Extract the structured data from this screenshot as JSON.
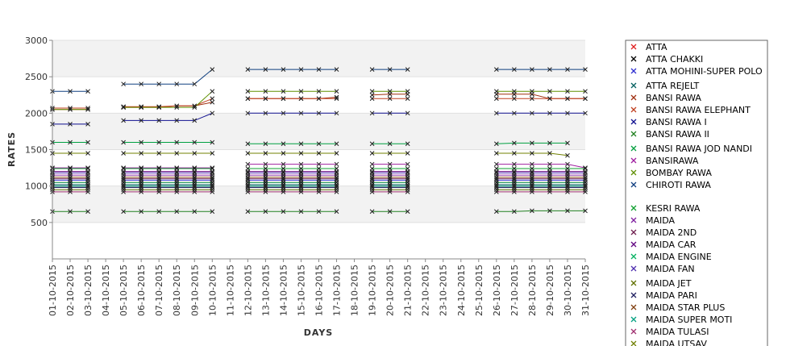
{
  "chart_data": {
    "type": "line",
    "title": "",
    "xlabel": "DAYS",
    "ylabel": "RATES",
    "ylim": [
      0,
      3000
    ],
    "yticks": [
      500,
      1000,
      1500,
      2000,
      2500,
      3000
    ],
    "grid": "horizontal alternating bands",
    "legend": "right",
    "categories": [
      "01-10-2015",
      "02-10-2015",
      "03-10-2015",
      "04-10-2015",
      "05-10-2015",
      "06-10-2015",
      "07-10-2015",
      "08-10-2015",
      "09-10-2015",
      "10-10-2015",
      "11-10-2015",
      "12-10-2015",
      "13-10-2015",
      "14-10-2015",
      "15-10-2015",
      "16-10-2015",
      "17-10-2015",
      "18-10-2015",
      "19-10-2015",
      "20-10-2015",
      "21-10-2015",
      "22-10-2015",
      "23-10-2015",
      "24-10-2015",
      "25-10-2015",
      "26-10-2015",
      "27-10-2015",
      "28-10-2015",
      "29-10-2015",
      "30-10-2015",
      "31-10-2015"
    ],
    "series": [
      {
        "name": "ATTA",
        "color": "#e02020",
        "values": [
          1050,
          1050,
          1050,
          null,
          1050,
          1050,
          1050,
          1050,
          1050,
          1050,
          null,
          1050,
          1050,
          1050,
          1050,
          1050,
          1050,
          null,
          1050,
          1050,
          1050,
          null,
          null,
          null,
          null,
          1050,
          1050,
          1050,
          1050,
          1050,
          1050
        ]
      },
      {
        "name": "ATTA CHAKKI",
        "color": "#000000",
        "values": [
          1000,
          1000,
          1000,
          null,
          1000,
          1000,
          1000,
          1000,
          1000,
          1000,
          null,
          1000,
          1000,
          1000,
          1000,
          1000,
          1000,
          null,
          1000,
          1000,
          1000,
          null,
          null,
          null,
          null,
          1000,
          1000,
          1000,
          1000,
          1000,
          1000
        ]
      },
      {
        "name": "ATTA MOHINI-SUPER POLO",
        "color": "#3030d0",
        "values": [
          1080,
          1080,
          1080,
          null,
          1080,
          1080,
          1080,
          1080,
          1080,
          1080,
          null,
          1080,
          1080,
          1080,
          1080,
          1080,
          1080,
          null,
          1080,
          1080,
          1080,
          null,
          null,
          null,
          null,
          1080,
          1080,
          1080,
          1080,
          1080,
          1080
        ]
      },
      {
        "name": "ATTA REJELT",
        "color": "#006060",
        "values": [
          1020,
          1020,
          1020,
          null,
          1020,
          1020,
          1020,
          1020,
          1020,
          1020,
          null,
          1020,
          1020,
          1020,
          1020,
          1020,
          1020,
          null,
          1020,
          1020,
          1020,
          null,
          null,
          null,
          null,
          1020,
          1020,
          1020,
          1020,
          1020,
          1020
        ]
      },
      {
        "name": "BANSI RAWA",
        "color": "#a03010",
        "values": [
          2050,
          2050,
          2050,
          null,
          2080,
          2080,
          2080,
          2100,
          2100,
          2150,
          null,
          2200,
          2200,
          2200,
          2200,
          2200,
          2220,
          null,
          2250,
          2260,
          2260,
          null,
          null,
          null,
          null,
          2260,
          2260,
          2260,
          2200,
          2200,
          2200
        ]
      },
      {
        "name": "BANSI RAWA ELEPHANT",
        "color": "#c04020",
        "values": [
          2070,
          2070,
          2070,
          null,
          2090,
          2090,
          2090,
          2100,
          2100,
          2200,
          null,
          2200,
          2200,
          2200,
          2200,
          2200,
          2200,
          null,
          2200,
          2200,
          2200,
          null,
          null,
          null,
          null,
          2200,
          2200,
          2200,
          2200,
          2200,
          2200
        ]
      },
      {
        "name": "BANSI RAWA I",
        "color": "#101090",
        "values": [
          1850,
          1850,
          1850,
          null,
          1900,
          1900,
          1900,
          1900,
          1900,
          2000,
          null,
          2000,
          2000,
          2000,
          2000,
          2000,
          2000,
          null,
          2000,
          2000,
          2000,
          null,
          null,
          null,
          null,
          2000,
          2000,
          2000,
          2000,
          2000,
          2000
        ]
      },
      {
        "name": "BANSI RAWA II",
        "color": "#208020",
        "values": [
          650,
          650,
          650,
          null,
          650,
          650,
          650,
          650,
          650,
          650,
          null,
          650,
          650,
          650,
          650,
          650,
          650,
          null,
          650,
          650,
          650,
          null,
          null,
          null,
          null,
          650,
          650,
          660,
          660,
          660,
          660
        ]
      },
      {
        "name": "BANSI RAWA JOD NANDI",
        "color": "#00a040",
        "values": [
          1600,
          1600,
          1600,
          null,
          1600,
          1600,
          1600,
          1600,
          1600,
          1600,
          null,
          1580,
          1580,
          1580,
          1580,
          1580,
          1580,
          null,
          1580,
          1580,
          1580,
          null,
          null,
          null,
          null,
          1580,
          1590,
          1590,
          1590,
          1590,
          null
        ]
      },
      {
        "name": "BANSIRAWA",
        "color": "#a020a0",
        "values": [
          1250,
          1250,
          1250,
          null,
          1250,
          1250,
          1250,
          1250,
          1250,
          1250,
          null,
          1300,
          1300,
          1300,
          1300,
          1300,
          1300,
          null,
          1300,
          1300,
          1300,
          null,
          null,
          null,
          null,
          1300,
          1300,
          1300,
          1300,
          1300,
          1250
        ]
      },
      {
        "name": "BOMBAY RAWA",
        "color": "#609000",
        "values": [
          2050,
          2050,
          2050,
          null,
          2080,
          2080,
          2080,
          2080,
          2080,
          2300,
          null,
          2300,
          2300,
          2300,
          2300,
          2300,
          2300,
          null,
          2300,
          2300,
          2300,
          null,
          null,
          null,
          null,
          2300,
          2300,
          2300,
          2300,
          2300,
          2300
        ]
      },
      {
        "name": "CHIROTI RAWA",
        "color": "#104080",
        "values": [
          2300,
          2300,
          2300,
          null,
          2400,
          2400,
          2400,
          2400,
          2400,
          2600,
          null,
          2600,
          2600,
          2600,
          2600,
          2600,
          2600,
          null,
          2600,
          2600,
          2600,
          null,
          null,
          null,
          null,
          2600,
          2600,
          2600,
          2600,
          2600,
          2600
        ]
      },
      {
        "name": "KESRI RAWA",
        "color": "#10a030",
        "values": [
          1240,
          1240,
          1240,
          null,
          1240,
          1240,
          1240,
          1240,
          1240,
          1240,
          null,
          1240,
          1240,
          1240,
          1240,
          1240,
          1240,
          null,
          1240,
          1240,
          1240,
          null,
          null,
          null,
          null,
          1240,
          1240,
          1240,
          1240,
          1240,
          1240
        ]
      },
      {
        "name": "MAIDA",
        "color": "#8020a0",
        "values": [
          1150,
          1150,
          1150,
          null,
          1150,
          1150,
          1150,
          1150,
          1150,
          1150,
          null,
          1150,
          1150,
          1150,
          1150,
          1150,
          1150,
          null,
          1150,
          1150,
          1150,
          null,
          null,
          null,
          null,
          1150,
          1150,
          1150,
          1150,
          1150,
          1150
        ]
      },
      {
        "name": "MAIDA 2ND",
        "color": "#702050",
        "values": [
          1100,
          1100,
          1100,
          null,
          1100,
          1100,
          1100,
          1100,
          1100,
          1100,
          null,
          1100,
          1100,
          1100,
          1100,
          1100,
          1100,
          null,
          1100,
          1100,
          1100,
          null,
          null,
          null,
          null,
          1100,
          1100,
          1100,
          1100,
          1100,
          1100
        ]
      },
      {
        "name": "MAIDA CAR",
        "color": "#600080",
        "values": [
          1200,
          1200,
          1200,
          null,
          1200,
          1200,
          1200,
          1200,
          1200,
          1200,
          null,
          1200,
          1200,
          1200,
          1200,
          1200,
          1200,
          null,
          1200,
          1200,
          1200,
          null,
          null,
          null,
          null,
          1200,
          1200,
          1200,
          1200,
          1200,
          1200
        ]
      },
      {
        "name": "MAIDA ENGINE",
        "color": "#00b060",
        "values": [
          1050,
          1050,
          1050,
          null,
          1050,
          1050,
          1050,
          1050,
          1050,
          1050,
          null,
          1050,
          1050,
          1050,
          1050,
          1050,
          1050,
          null,
          1050,
          1050,
          1050,
          null,
          null,
          null,
          null,
          1050,
          1050,
          1050,
          1050,
          1050,
          1050
        ]
      },
      {
        "name": "MAIDA FAN",
        "color": "#5030b0",
        "values": [
          1180,
          1180,
          1180,
          null,
          1180,
          1180,
          1180,
          1180,
          1180,
          1180,
          null,
          1180,
          1180,
          1180,
          1180,
          1180,
          1180,
          null,
          1180,
          1180,
          1180,
          null,
          null,
          null,
          null,
          1180,
          1180,
          1180,
          1180,
          1180,
          1180
        ]
      },
      {
        "name": "MAIDA JET",
        "color": "#607000",
        "values": [
          950,
          950,
          950,
          null,
          950,
          950,
          950,
          950,
          950,
          950,
          null,
          950,
          950,
          950,
          950,
          950,
          950,
          null,
          950,
          950,
          950,
          null,
          null,
          null,
          null,
          950,
          950,
          950,
          950,
          950,
          950
        ]
      },
      {
        "name": "MAIDA PARI",
        "color": "#202060",
        "values": [
          980,
          980,
          980,
          null,
          980,
          980,
          980,
          980,
          980,
          980,
          null,
          980,
          980,
          980,
          980,
          980,
          980,
          null,
          980,
          980,
          980,
          null,
          null,
          null,
          null,
          980,
          980,
          980,
          980,
          980,
          980
        ]
      },
      {
        "name": "MAIDA STAR PLUS",
        "color": "#804010",
        "values": [
          1120,
          1120,
          1120,
          null,
          1120,
          1120,
          1120,
          1120,
          1120,
          1120,
          null,
          1120,
          1120,
          1120,
          1120,
          1120,
          1120,
          null,
          1120,
          1120,
          1120,
          null,
          null,
          null,
          null,
          1120,
          1120,
          1120,
          1120,
          1120,
          1120
        ]
      },
      {
        "name": "MAIDA SUPER MOTI",
        "color": "#00a080",
        "values": [
          1000,
          1000,
          1000,
          null,
          1000,
          1000,
          1000,
          1000,
          1000,
          1000,
          null,
          1000,
          1000,
          1000,
          1000,
          1000,
          1000,
          null,
          1000,
          1000,
          1000,
          null,
          null,
          null,
          null,
          1000,
          1000,
          1000,
          1000,
          1000,
          1000
        ]
      },
      {
        "name": "MAIDA TULASI",
        "color": "#a03070",
        "values": [
          920,
          920,
          920,
          null,
          920,
          920,
          920,
          920,
          920,
          920,
          null,
          920,
          920,
          920,
          920,
          920,
          920,
          null,
          920,
          920,
          920,
          null,
          null,
          null,
          null,
          920,
          920,
          920,
          920,
          920,
          920
        ]
      },
      {
        "name": "MAIDA UTSAV",
        "color": "#708000",
        "values": [
          1450,
          1450,
          1450,
          null,
          1450,
          1450,
          1450,
          1450,
          1450,
          1450,
          null,
          1450,
          1450,
          1450,
          1450,
          1450,
          1450,
          null,
          1450,
          1450,
          1450,
          null,
          null,
          null,
          null,
          1450,
          1450,
          1450,
          1450,
          1420,
          null
        ]
      }
    ]
  }
}
